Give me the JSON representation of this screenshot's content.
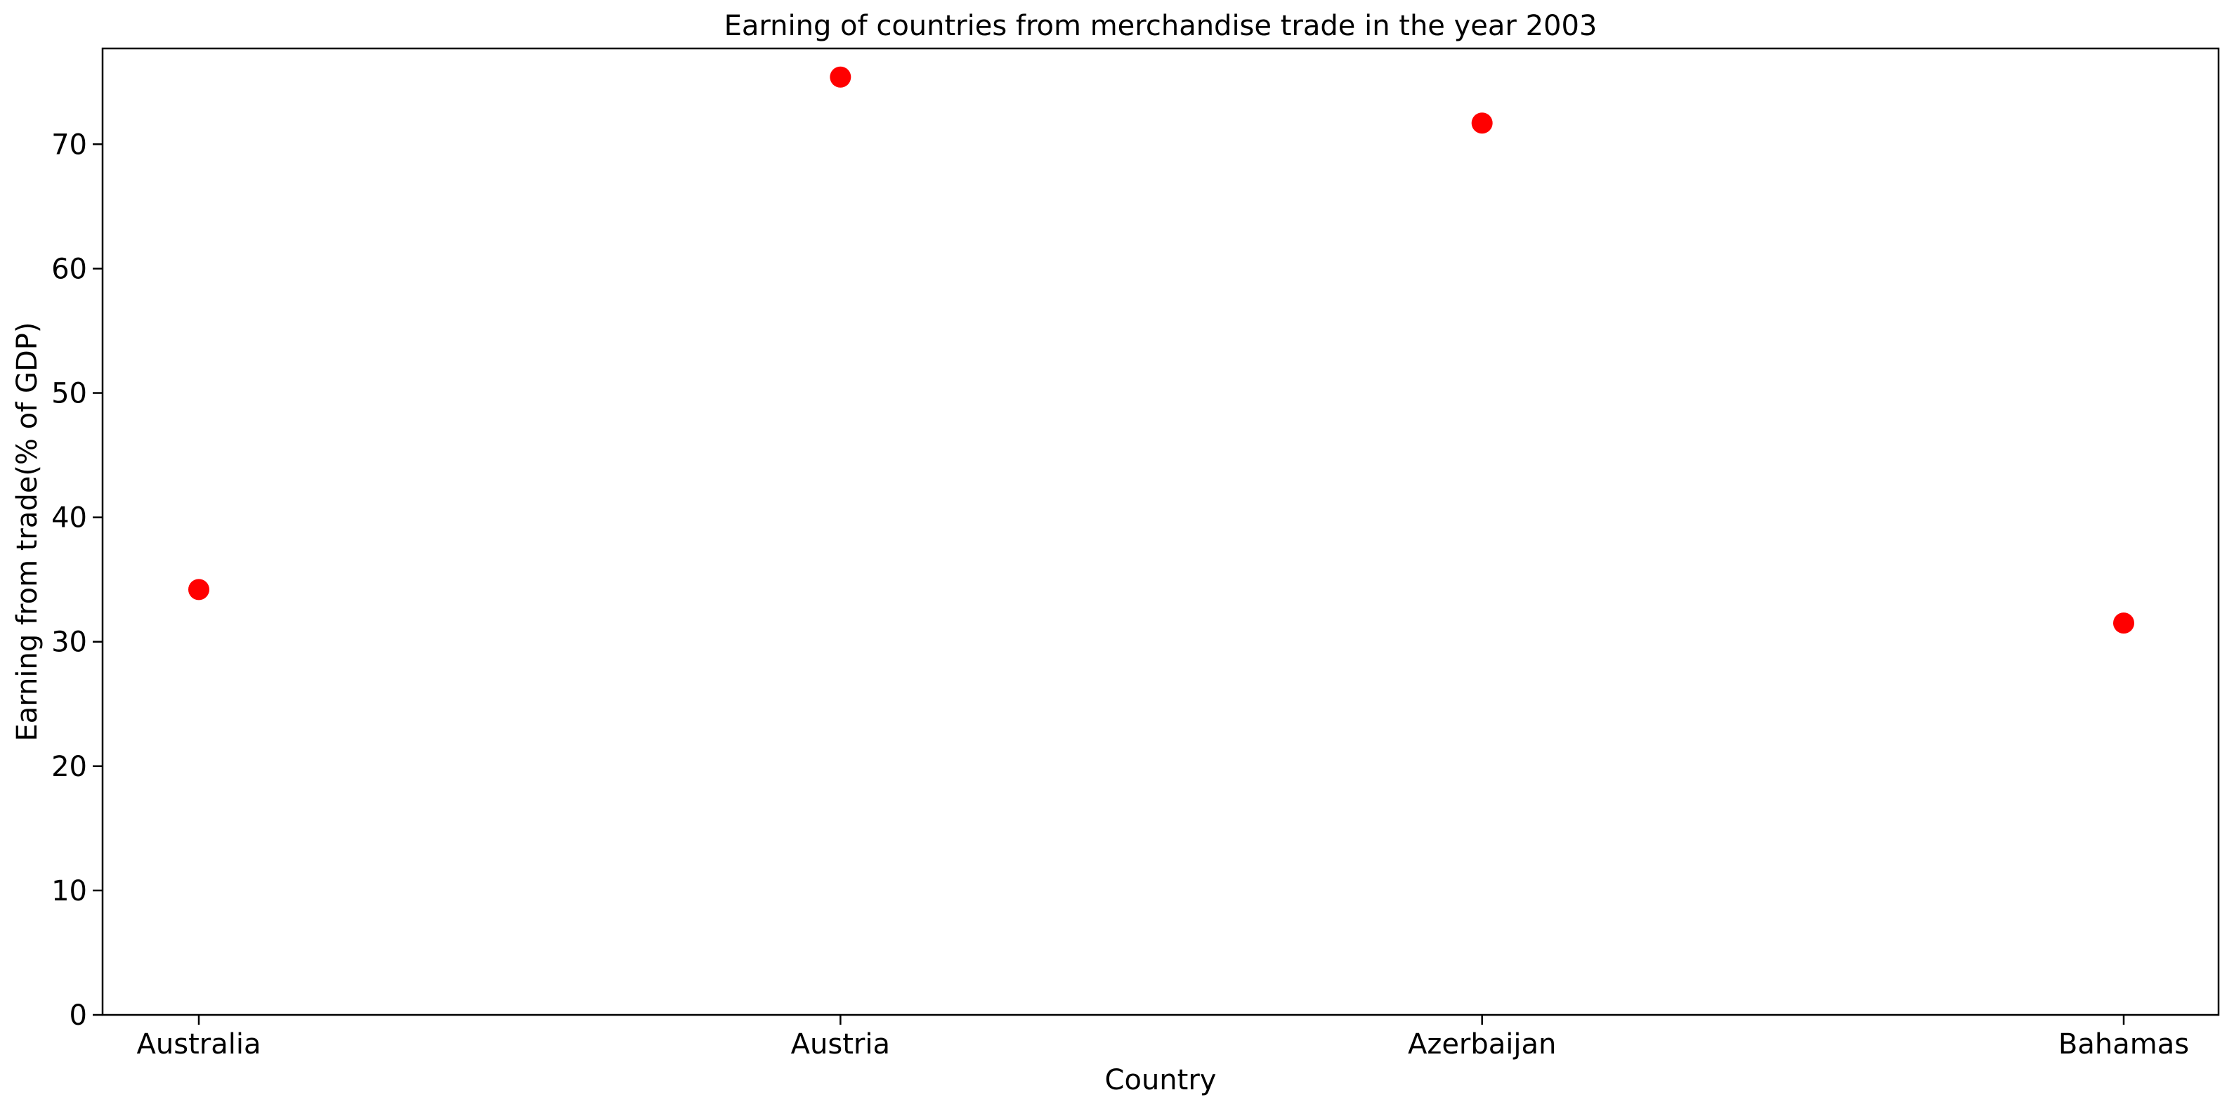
{
  "chart_data": {
    "type": "scatter",
    "title": "Earning of countries from merchandise trade in the year 2003",
    "xlabel": "Country",
    "ylabel": "Earning from trade(% of GDP)",
    "categories": [
      "Australia",
      "Austria",
      "Azerbaijan",
      "Bahamas"
    ],
    "values": [
      34.2,
      75.4,
      71.7,
      31.5
    ],
    "ylim": [
      0,
      77.7
    ],
    "yticks": [
      0,
      10,
      20,
      30,
      40,
      50,
      60,
      70
    ],
    "grid": false,
    "legend": "none",
    "marker_color": "#ff0000"
  }
}
